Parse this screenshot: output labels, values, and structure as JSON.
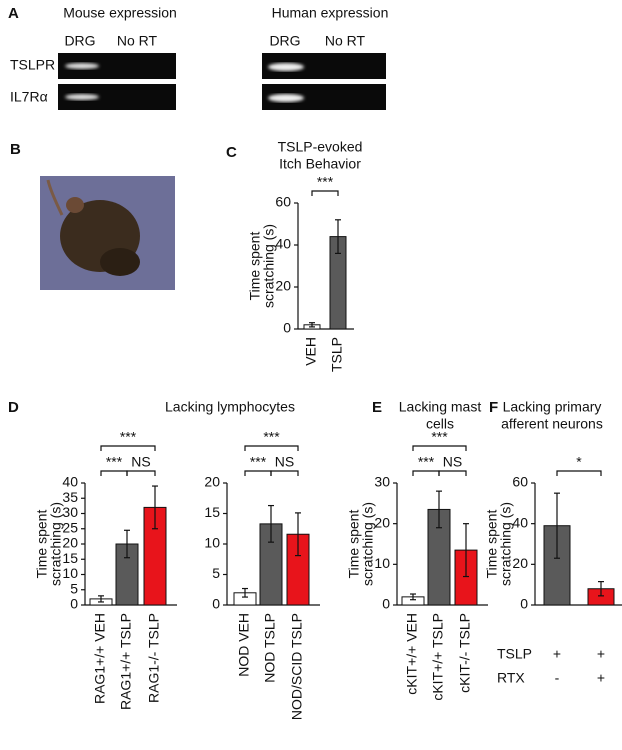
{
  "panel_a": {
    "letter": "A",
    "mouse_title": "Mouse expression",
    "human_title": "Human expression",
    "mouse_lanes": [
      "DRG",
      "No RT"
    ],
    "human_lanes": [
      "DRG",
      "No RT"
    ],
    "rows": [
      "TSLPR",
      "IL7Rα"
    ]
  },
  "panel_b": {
    "letter": "B"
  },
  "chart_data": [
    {
      "type": "bar",
      "panel": "C",
      "title": [
        "TSLP-evoked",
        "Itch Behavior"
      ],
      "ylabel": [
        "Time spent",
        "scratching (s)"
      ],
      "categories": [
        "VEH",
        "TSLP"
      ],
      "values": [
        2,
        44
      ],
      "errors": [
        1,
        8
      ],
      "colors": [
        "#ffffff",
        "#5a5a5a"
      ],
      "ylim": [
        0,
        60
      ],
      "yticks": [
        0,
        20,
        40,
        60
      ],
      "comparisons": [
        {
          "label": "***",
          "pair": [
            0,
            1
          ]
        }
      ]
    },
    {
      "type": "bar",
      "panel": "D",
      "title": [
        "Lacking lymphocytes"
      ],
      "ylabel": [
        "Time spent",
        "scratching (s)"
      ],
      "categories": [
        "RAG1+/+ VEH",
        "RAG1+/+ TSLP",
        "RAG1-/- TSLP"
      ],
      "values": [
        2,
        20,
        32
      ],
      "errors": [
        1,
        4.5,
        7
      ],
      "colors": [
        "#ffffff",
        "#5a5a5a",
        "#e8141b"
      ],
      "ylim": [
        0,
        40
      ],
      "yticks": [
        0,
        5,
        10,
        15,
        20,
        25,
        30,
        35,
        40
      ],
      "comparisons": [
        {
          "label": "***",
          "pair": [
            0,
            2
          ]
        },
        {
          "label": "***",
          "pair": [
            0,
            1
          ]
        },
        {
          "label": "NS",
          "pair": [
            1,
            2
          ]
        }
      ]
    },
    {
      "type": "bar",
      "categories": [
        "NOD VEH",
        "NOD TSLP",
        "NOD/SCID TSLP"
      ],
      "values": [
        2,
        13.3,
        11.6
      ],
      "errors": [
        0.7,
        3,
        3.5
      ],
      "colors": [
        "#ffffff",
        "#5a5a5a",
        "#e8141b"
      ],
      "ylim": [
        0,
        20
      ],
      "yticks": [
        0,
        5,
        10,
        15,
        20
      ],
      "comparisons": [
        {
          "label": "***",
          "pair": [
            0,
            2
          ]
        },
        {
          "label": "***",
          "pair": [
            0,
            1
          ]
        },
        {
          "label": "NS",
          "pair": [
            1,
            2
          ]
        }
      ]
    },
    {
      "type": "bar",
      "panel": "E",
      "title": [
        "Lacking mast",
        "cells"
      ],
      "ylabel": [
        "Time spent",
        "scratching (s)"
      ],
      "categories": [
        "cKIT+/+ VEH",
        "cKIT+/+ TSLP",
        "cKIT-/- TSLP"
      ],
      "values": [
        2,
        23.5,
        13.5
      ],
      "errors": [
        0.7,
        4.5,
        6.5
      ],
      "colors": [
        "#ffffff",
        "#5a5a5a",
        "#e8141b"
      ],
      "ylim": [
        0,
        30
      ],
      "yticks": [
        0,
        10,
        20,
        30
      ],
      "comparisons": [
        {
          "label": "***",
          "pair": [
            0,
            2
          ]
        },
        {
          "label": "***",
          "pair": [
            0,
            1
          ]
        },
        {
          "label": "NS",
          "pair": [
            1,
            2
          ]
        }
      ]
    },
    {
      "type": "bar",
      "panel": "F",
      "title": [
        "Lacking primary",
        "afferent neurons"
      ],
      "ylabel": [
        "Time spent",
        "scratching (s)"
      ],
      "values": [
        39,
        8
      ],
      "errors": [
        16,
        3.5
      ],
      "colors": [
        "#5a5a5a",
        "#e8141b"
      ],
      "ylim": [
        0,
        60
      ],
      "yticks": [
        0,
        20,
        40,
        60
      ],
      "comparisons": [
        {
          "label": "*",
          "pair": [
            0,
            1
          ]
        }
      ],
      "conditions": [
        {
          "name": "TSLP",
          "values": [
            "+",
            "+"
          ]
        },
        {
          "name": "RTX",
          "values": [
            "-",
            "+"
          ]
        }
      ]
    }
  ]
}
